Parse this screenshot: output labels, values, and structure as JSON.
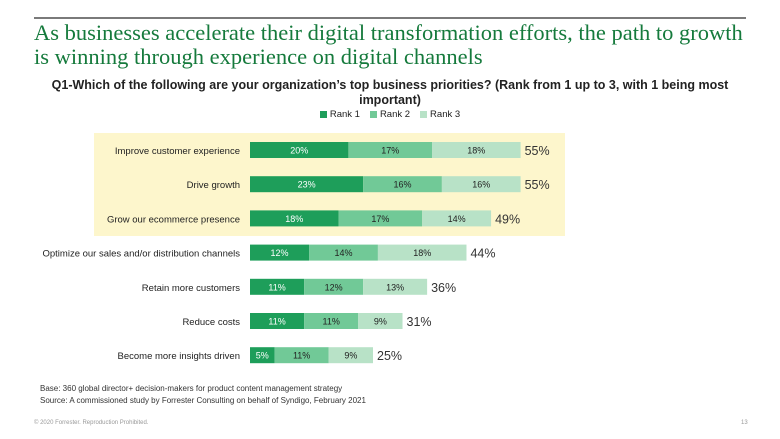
{
  "headline": "As businesses accelerate their digital transformation efforts, the path to growth is winning through experience on digital channels",
  "question": "Q1-Which of the following are your organization’s top business priorities? (Rank from 1 up to 3, with 1 being most important)",
  "colors": {
    "rank1": "#1e9e5a",
    "rank2": "#71c997",
    "rank3": "#b8e2c7",
    "highlight": "#fdf6cc",
    "headline": "#157a3c"
  },
  "chart_data": {
    "type": "bar",
    "orientation": "horizontal",
    "stacked": true,
    "categories": [
      "Improve customer experience",
      "Drive growth",
      "Grow our ecommerce presence",
      "Optimize our sales and/or distribution channels",
      "Retain more customers",
      "Reduce costs",
      "Become more insights driven"
    ],
    "series": [
      {
        "name": "Rank 1",
        "values": [
          20,
          23,
          18,
          12,
          11,
          11,
          5
        ]
      },
      {
        "name": "Rank 2",
        "values": [
          17,
          16,
          17,
          14,
          12,
          11,
          11
        ]
      },
      {
        "name": "Rank 3",
        "values": [
          18,
          16,
          14,
          18,
          13,
          9,
          9
        ]
      }
    ],
    "totals": [
      "55%",
      "55%",
      "49%",
      "44%",
      "36%",
      "31%",
      "25%"
    ],
    "legend_position": "top",
    "highlighted_categories": 3
  },
  "notes": {
    "base": "Base: 360 global director+ decision-makers for product content management strategy",
    "source": "Source: A commissioned study by Forrester Consulting on behalf of Syndigo, February 2021"
  },
  "footer": "© 2020 Forrester. Reproduction Prohibited.",
  "page_number": "13"
}
